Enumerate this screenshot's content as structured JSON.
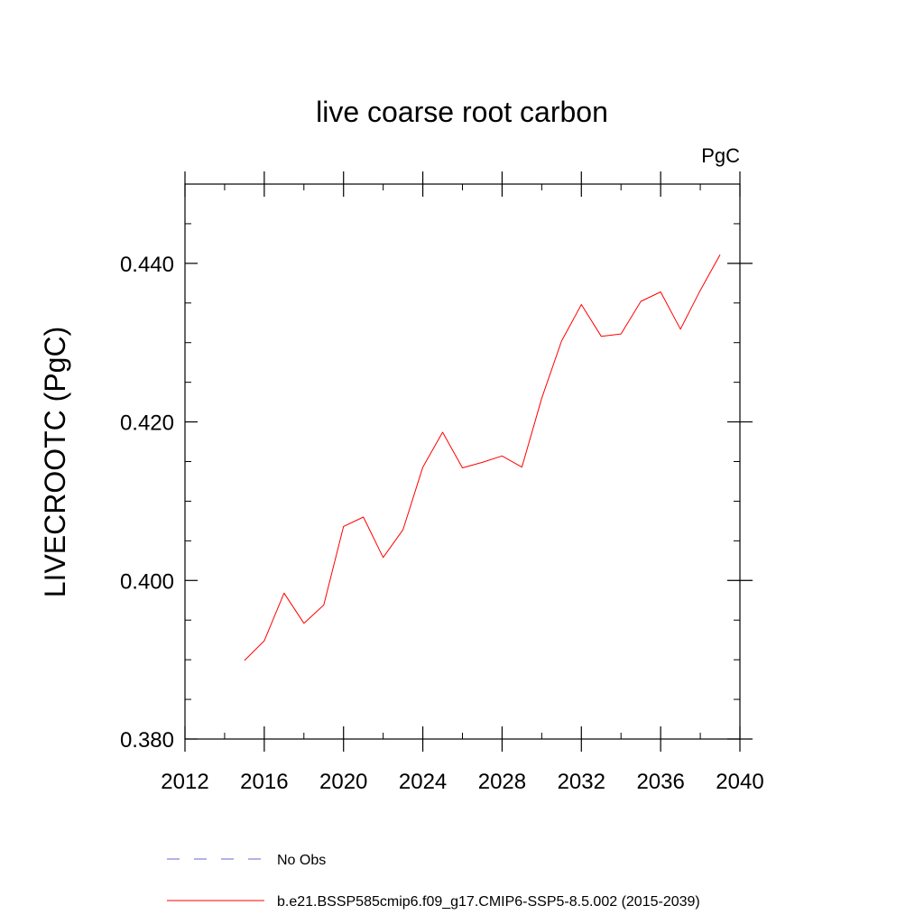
{
  "chart_data": {
    "type": "line",
    "title": "live coarse root carbon",
    "units_label": "PgC",
    "xlabel": "",
    "ylabel": "LIVECROOTC  (PgC)",
    "xlim": [
      2012,
      2040
    ],
    "ylim": [
      0.38,
      0.45
    ],
    "x_ticks": [
      2012,
      2016,
      2020,
      2024,
      2028,
      2032,
      2036,
      2040
    ],
    "x_tick_labels": [
      "2012",
      "2016",
      "2020",
      "2024",
      "2028",
      "2032",
      "2036",
      "2040"
    ],
    "y_ticks": [
      0.38,
      0.4,
      0.42,
      0.44
    ],
    "y_tick_labels": [
      "0.380",
      "0.400",
      "0.420",
      "0.440"
    ],
    "grid": false,
    "series": [
      {
        "name": "b.e21.BSSP585cmip6.f09_g17.CMIP6-SSP5-8.5.002 (2015-2039)",
        "color": "#ff0000",
        "dash": "solid",
        "x": [
          2015,
          2016,
          2017,
          2018,
          2019,
          2020,
          2021,
          2022,
          2023,
          2024,
          2025,
          2026,
          2027,
          2028,
          2029,
          2030,
          2031,
          2032,
          2033,
          2034,
          2035,
          2036,
          2037,
          2038,
          2039
        ],
        "values": [
          0.3899,
          0.3924,
          0.3984,
          0.3946,
          0.3969,
          0.4068,
          0.408,
          0.4029,
          0.4064,
          0.4143,
          0.4187,
          0.4142,
          0.4149,
          0.4157,
          0.4143,
          0.423,
          0.4302,
          0.4348,
          0.4308,
          0.4311,
          0.4352,
          0.4364,
          0.4317,
          0.4366,
          0.4411
        ]
      }
    ],
    "legend": [
      {
        "label": "No Obs",
        "color": "#6666cc",
        "dash": "dashed"
      },
      {
        "label": "b.e21.BSSP585cmip6.f09_g17.CMIP6-SSP5-8.5.002 (2015-2039)",
        "color": "#ff0000",
        "dash": "solid"
      }
    ],
    "legend_position": "bottom"
  }
}
